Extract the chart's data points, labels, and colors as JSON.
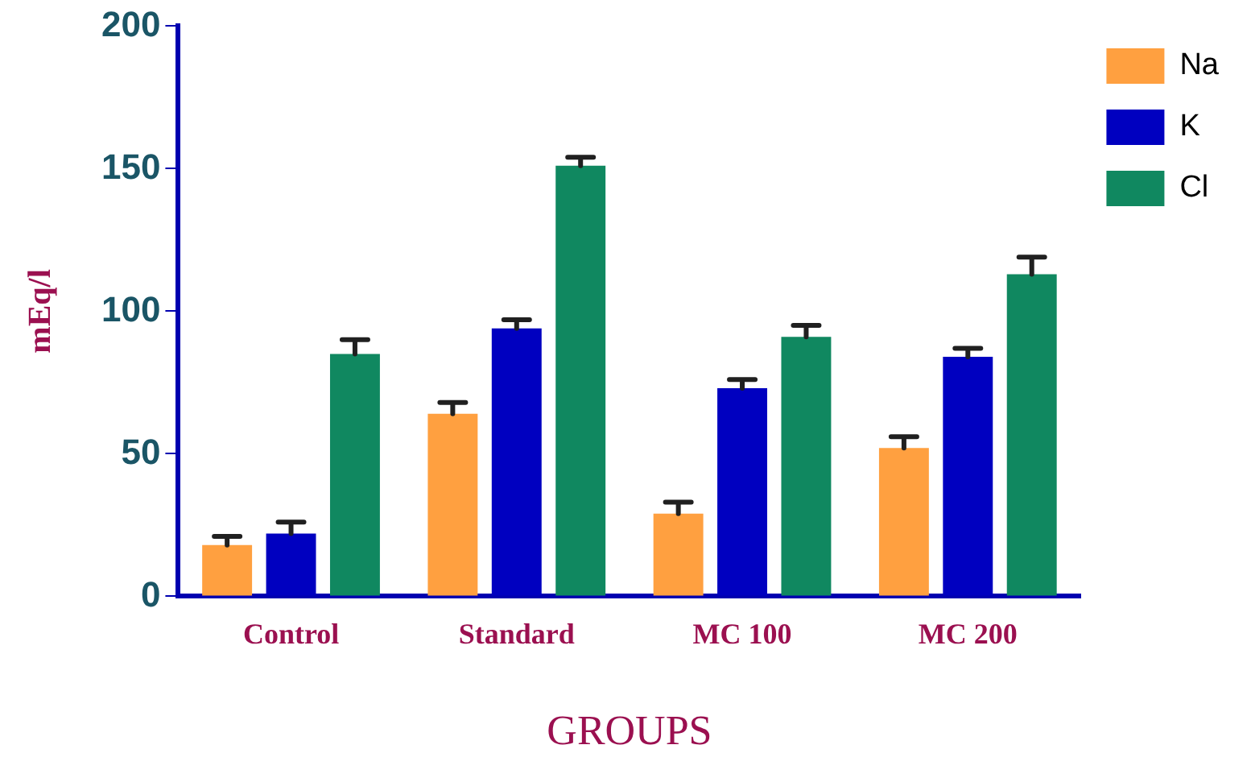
{
  "chart_data": {
    "type": "bar",
    "xlabel": "GROUPS",
    "ylabel": "mEq/l",
    "categories": [
      "Control",
      "Standard",
      "MC 100",
      "MC 200"
    ],
    "series": [
      {
        "name": "Na",
        "color": "#ffa040",
        "values": [
          18,
          64,
          29,
          52
        ],
        "errors": [
          [
            18,
            21
          ],
          [
            64,
            68
          ],
          [
            29,
            33
          ],
          [
            52,
            56
          ]
        ]
      },
      {
        "name": "K",
        "color": "#0000c0",
        "values": [
          22,
          94,
          73,
          84
        ],
        "errors": [
          [
            22,
            26
          ],
          [
            94,
            97
          ],
          [
            73,
            76
          ],
          [
            84,
            87
          ]
        ]
      },
      {
        "name": "Cl",
        "color": "#108860",
        "values": [
          85,
          151,
          91,
          113
        ],
        "errors": [
          [
            85,
            90
          ],
          [
            151,
            154
          ],
          [
            91,
            95
          ],
          [
            113,
            119
          ]
        ]
      }
    ],
    "ylim": [
      0,
      200
    ],
    "yticks": [
      0,
      50,
      100,
      150,
      200
    ],
    "grid": false,
    "legend": "top right"
  }
}
